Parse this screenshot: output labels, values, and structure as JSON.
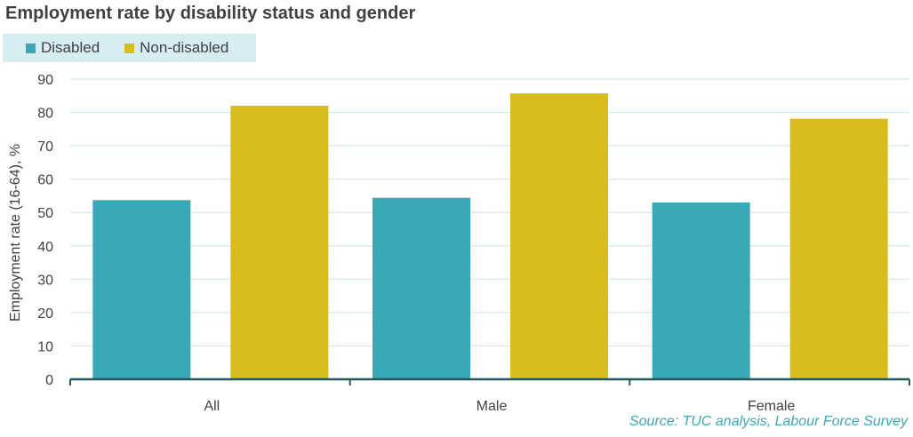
{
  "source": "Source: TUC analysis, Labour Force Survey",
  "colors": {
    "disabled": "#3aa9b7",
    "non_disabled": "#d9bd1f",
    "gridline": "#cfe8ec",
    "axis": "#1f5a63",
    "legend_bg": "#d6eef2"
  },
  "chart_data": {
    "type": "bar",
    "title": "Employment rate by disability status and gender",
    "ylabel": "Employment rate (16-64), %",
    "xlabel": "",
    "ylim": [
      0,
      90
    ],
    "yticks": [
      0,
      10,
      20,
      30,
      40,
      50,
      60,
      70,
      80,
      90
    ],
    "categories": [
      "All",
      "Male",
      "Female"
    ],
    "legend_position": "top-left",
    "grid": true,
    "series": [
      {
        "name": "Disabled",
        "color": "#3aa9b7",
        "values": [
          53.7,
          54.4,
          53.0
        ]
      },
      {
        "name": "Non-disabled",
        "color": "#d9bd1f",
        "values": [
          82.0,
          85.7,
          78.1
        ]
      }
    ]
  }
}
